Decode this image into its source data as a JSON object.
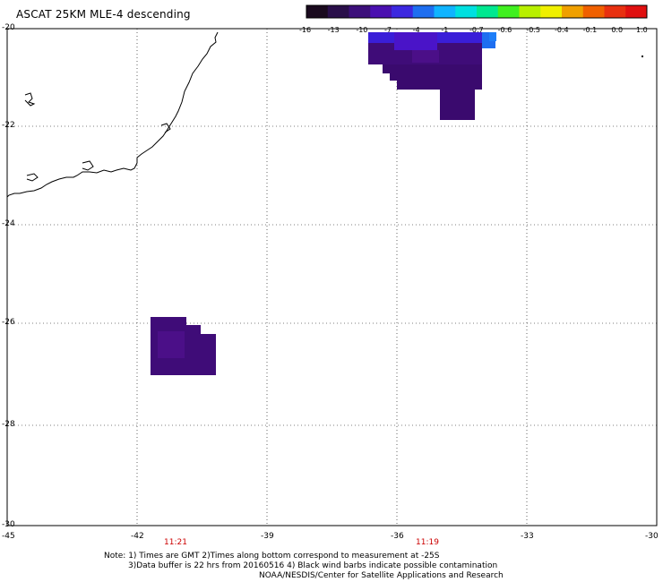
{
  "title": "ASCAT 25KM MLE-4 descending",
  "colorbar": {
    "labels": [
      "-16",
      "-13",
      "-10",
      "-7",
      "-4",
      "-1",
      "-0.7",
      "-0.6",
      "-0.5",
      "-0.4",
      "-0.1",
      "0.0",
      "1.0"
    ],
    "colors": [
      "#1a0a1e",
      "#2a0f4a",
      "#3c0f7a",
      "#4a10b0",
      "#3c28e0",
      "#1e6ef0",
      "#10b4ff",
      "#00e0e0",
      "#00e890",
      "#40f020",
      "#b8f000",
      "#f0f000",
      "#f0a000",
      "#f06000",
      "#e83010",
      "#e01010"
    ]
  },
  "axes": {
    "lat_labels": [
      "-20",
      "-22",
      "-24",
      "-26",
      "-28",
      "-30"
    ],
    "lon_labels": [
      "-45",
      "-42",
      "-39",
      "-36",
      "-33",
      "-30"
    ],
    "time_labels": [
      "11:21",
      "11:19"
    ]
  },
  "colors": {
    "swath_dark": "#3a0a6e",
    "swath_mid": "#4b0f88",
    "swath_blue": "#3a1ed8",
    "swath_light_blue": "#1e6ef0",
    "time_label": "#cc0000"
  },
  "notes": {
    "line1": "Note: 1) Times are GMT 2)Times along bottom correspond to measurement at -25S",
    "line2": "3)Data buffer is 22 hrs from 20160516 4) Black wind barbs indicate possible contamination",
    "line3": "NOAA/NESDIS/Center for Satellite Applications and Research"
  }
}
